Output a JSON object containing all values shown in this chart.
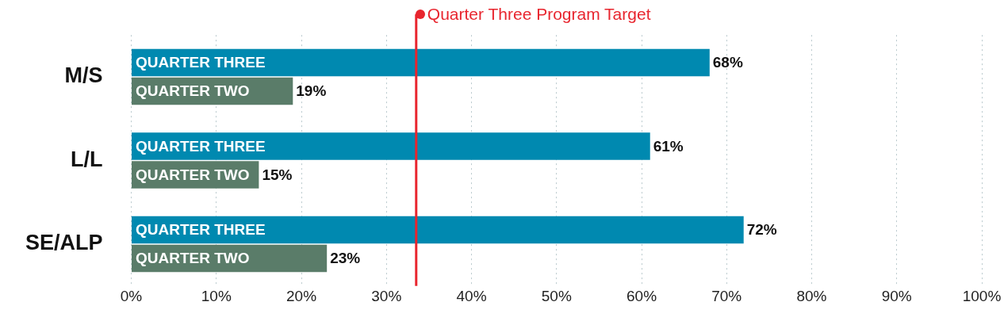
{
  "chart_data": {
    "type": "bar",
    "orientation": "horizontal",
    "categories": [
      "M/S",
      "L/L",
      "SE/ALP"
    ],
    "series": [
      {
        "name": "QUARTER THREE",
        "color": "#0089b0",
        "values": [
          68,
          61,
          72
        ],
        "value_labels": [
          "68%",
          "61%",
          "72%"
        ]
      },
      {
        "name": "QUARTER TWO",
        "color": "#5a7c69",
        "values": [
          19,
          15,
          23
        ],
        "value_labels": [
          "19%",
          "15%",
          "23%"
        ]
      }
    ],
    "xlim": [
      0,
      100
    ],
    "xticks": [
      {
        "value": 0,
        "label": "0%"
      },
      {
        "value": 10,
        "label": "10%"
      },
      {
        "value": 20,
        "label": "20%"
      },
      {
        "value": 30,
        "label": "30%"
      },
      {
        "value": 40,
        "label": "40%"
      },
      {
        "value": 50,
        "label": "50%"
      },
      {
        "value": 60,
        "label": "60%"
      },
      {
        "value": 70,
        "label": "70%"
      },
      {
        "value": 80,
        "label": "80%"
      },
      {
        "value": 90,
        "label": "90%"
      },
      {
        "value": 100,
        "label": "100%"
      }
    ],
    "grid": "x",
    "legend": false,
    "ref_lines": [
      {
        "axis": "x",
        "value": 33.5,
        "label": "Quarter Three Program Target",
        "color": "#e8252e"
      }
    ]
  }
}
